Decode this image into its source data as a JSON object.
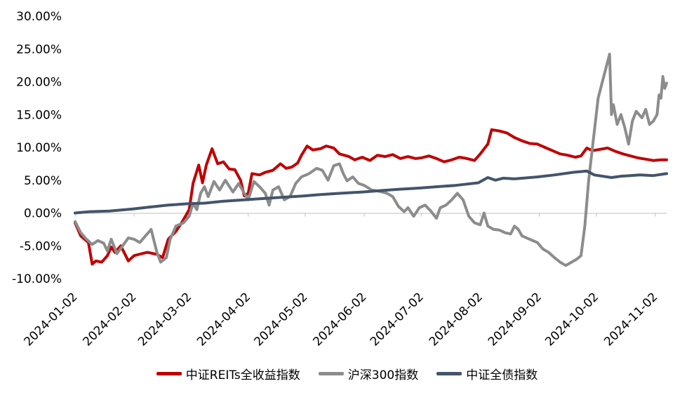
{
  "chart_data": {
    "type": "line",
    "title": "",
    "xlabel": "",
    "ylabel": "",
    "ylim": [
      -10,
      30
    ],
    "y_ticks": [
      "30.00%",
      "25.00%",
      "20.00%",
      "15.00%",
      "10.00%",
      "5.00%",
      "0.00%",
      "-5.00%",
      "-10.00%"
    ],
    "x_ticks": [
      "2024-01-02",
      "2024-02-02",
      "2024-03-02",
      "2024-04-02",
      "2024-05-02",
      "2024-06-02",
      "2024-07-02",
      "2024-08-02",
      "2024-09-02",
      "2024-10-02",
      "2024-11-02"
    ],
    "grid": false,
    "legend_position": "bottom",
    "series": [
      {
        "name": "中证REITs全收益指数",
        "color": "#c00000",
        "points": [
          [
            "2024-01-02",
            -1.5
          ],
          [
            "2024-01-05",
            -3.5
          ],
          [
            "2024-01-09",
            -4.5
          ],
          [
            "2024-01-11",
            -7.8
          ],
          [
            "2024-01-13",
            -7.3
          ],
          [
            "2024-01-16",
            -7.5
          ],
          [
            "2024-01-19",
            -6.5
          ],
          [
            "2024-01-21",
            -5.2
          ],
          [
            "2024-01-23",
            -6.0
          ],
          [
            "2024-01-26",
            -5.0
          ],
          [
            "2024-01-30",
            -7.3
          ],
          [
            "2024-02-02",
            -6.5
          ],
          [
            "2024-02-06",
            -6.2
          ],
          [
            "2024-02-09",
            -6.0
          ],
          [
            "2024-02-14",
            -6.3
          ],
          [
            "2024-02-17",
            -6.8
          ],
          [
            "2024-02-20",
            -4.0
          ],
          [
            "2024-02-24",
            -2.8
          ],
          [
            "2024-02-27",
            -1.5
          ],
          [
            "2024-02-29",
            -0.5
          ],
          [
            "2024-03-02",
            0.5
          ],
          [
            "2024-03-04",
            4.5
          ],
          [
            "2024-03-07",
            7.3
          ],
          [
            "2024-03-09",
            4.6
          ],
          [
            "2024-03-11",
            7.3
          ],
          [
            "2024-03-14",
            9.8
          ],
          [
            "2024-03-17",
            7.5
          ],
          [
            "2024-03-20",
            7.8
          ],
          [
            "2024-03-23",
            6.7
          ],
          [
            "2024-03-26",
            6.6
          ],
          [
            "2024-03-29",
            5.0
          ],
          [
            "2024-03-31",
            2.6
          ],
          [
            "2024-04-02",
            3.0
          ],
          [
            "2024-04-04",
            6.0
          ],
          [
            "2024-04-08",
            5.8
          ],
          [
            "2024-04-11",
            6.2
          ],
          [
            "2024-04-15",
            6.5
          ],
          [
            "2024-04-19",
            7.5
          ],
          [
            "2024-04-22",
            6.8
          ],
          [
            "2024-04-25",
            7.0
          ],
          [
            "2024-04-28",
            7.6
          ],
          [
            "2024-04-30",
            8.8
          ],
          [
            "2024-05-03",
            10.2
          ],
          [
            "2024-05-06",
            9.6
          ],
          [
            "2024-05-10",
            9.8
          ],
          [
            "2024-05-13",
            10.2
          ],
          [
            "2024-05-17",
            9.9
          ],
          [
            "2024-05-20",
            9.0
          ],
          [
            "2024-05-25",
            8.6
          ],
          [
            "2024-05-28",
            8.1
          ],
          [
            "2024-06-01",
            8.5
          ],
          [
            "2024-06-05",
            8.0
          ],
          [
            "2024-06-09",
            8.8
          ],
          [
            "2024-06-13",
            8.6
          ],
          [
            "2024-06-17",
            8.9
          ],
          [
            "2024-06-21",
            8.3
          ],
          [
            "2024-06-25",
            8.6
          ],
          [
            "2024-06-29",
            8.3
          ],
          [
            "2024-07-02",
            8.4
          ],
          [
            "2024-07-06",
            8.7
          ],
          [
            "2024-07-10",
            8.3
          ],
          [
            "2024-07-14",
            7.8
          ],
          [
            "2024-07-18",
            8.1
          ],
          [
            "2024-07-22",
            8.5
          ],
          [
            "2024-07-26",
            8.3
          ],
          [
            "2024-07-30",
            8.0
          ],
          [
            "2024-08-02",
            9.0
          ],
          [
            "2024-08-06",
            10.5
          ],
          [
            "2024-08-08",
            12.7
          ],
          [
            "2024-08-12",
            12.5
          ],
          [
            "2024-08-16",
            12.2
          ],
          [
            "2024-08-20",
            11.5
          ],
          [
            "2024-08-24",
            11.0
          ],
          [
            "2024-08-28",
            10.6
          ],
          [
            "2024-09-01",
            10.5
          ],
          [
            "2024-09-05",
            10.0
          ],
          [
            "2024-09-09",
            9.5
          ],
          [
            "2024-09-13",
            9.0
          ],
          [
            "2024-09-17",
            8.8
          ],
          [
            "2024-09-21",
            8.5
          ],
          [
            "2024-09-24",
            8.7
          ],
          [
            "2024-09-27",
            9.9
          ],
          [
            "2024-09-30",
            9.5
          ],
          [
            "2024-10-04",
            9.7
          ],
          [
            "2024-10-08",
            9.9
          ],
          [
            "2024-10-12",
            9.4
          ],
          [
            "2024-10-16",
            9.0
          ],
          [
            "2024-10-20",
            8.7
          ],
          [
            "2024-10-24",
            8.4
          ],
          [
            "2024-10-28",
            8.2
          ],
          [
            "2024-11-01",
            8.0
          ],
          [
            "2024-11-05",
            8.1
          ],
          [
            "2024-11-08",
            8.1
          ]
        ]
      },
      {
        "name": "沪深300指数",
        "color": "#8c8c8c",
        "points": [
          [
            "2024-01-02",
            -1.3
          ],
          [
            "2024-01-05",
            -3.0
          ],
          [
            "2024-01-08",
            -4.0
          ],
          [
            "2024-01-11",
            -4.8
          ],
          [
            "2024-01-14",
            -4.2
          ],
          [
            "2024-01-17",
            -4.6
          ],
          [
            "2024-01-19",
            -5.8
          ],
          [
            "2024-01-21",
            -4.0
          ],
          [
            "2024-01-24",
            -6.2
          ],
          [
            "2024-01-27",
            -5.0
          ],
          [
            "2024-01-30",
            -3.8
          ],
          [
            "2024-02-02",
            -4.0
          ],
          [
            "2024-02-05",
            -4.5
          ],
          [
            "2024-02-08",
            -3.5
          ],
          [
            "2024-02-11",
            -2.5
          ],
          [
            "2024-02-14",
            -6.0
          ],
          [
            "2024-02-16",
            -7.5
          ],
          [
            "2024-02-19",
            -6.8
          ],
          [
            "2024-02-21",
            -4.0
          ],
          [
            "2024-02-24",
            -2.0
          ],
          [
            "2024-02-28",
            -1.5
          ],
          [
            "2024-03-02",
            -0.5
          ],
          [
            "2024-03-04",
            1.5
          ],
          [
            "2024-03-06",
            0.5
          ],
          [
            "2024-03-08",
            3.0
          ],
          [
            "2024-03-10",
            4.0
          ],
          [
            "2024-03-12",
            2.5
          ],
          [
            "2024-03-15",
            4.8
          ],
          [
            "2024-03-18",
            3.5
          ],
          [
            "2024-03-21",
            5.0
          ],
          [
            "2024-03-25",
            3.2
          ],
          [
            "2024-03-28",
            4.5
          ],
          [
            "2024-03-31",
            3.0
          ],
          [
            "2024-04-02",
            2.0
          ],
          [
            "2024-04-05",
            4.8
          ],
          [
            "2024-04-08",
            4.0
          ],
          [
            "2024-04-11",
            3.0
          ],
          [
            "2024-04-13",
            1.2
          ],
          [
            "2024-04-15",
            3.5
          ],
          [
            "2024-04-18",
            4.0
          ],
          [
            "2024-04-21",
            2.0
          ],
          [
            "2024-04-24",
            2.5
          ],
          [
            "2024-04-27",
            4.5
          ],
          [
            "2024-04-30",
            5.5
          ],
          [
            "2024-05-04",
            6.0
          ],
          [
            "2024-05-08",
            6.8
          ],
          [
            "2024-05-11",
            6.5
          ],
          [
            "2024-05-14",
            5.0
          ],
          [
            "2024-05-17",
            7.2
          ],
          [
            "2024-05-20",
            7.5
          ],
          [
            "2024-05-22",
            6.0
          ],
          [
            "2024-05-24",
            4.9
          ],
          [
            "2024-05-27",
            5.5
          ],
          [
            "2024-05-30",
            4.5
          ],
          [
            "2024-06-02",
            4.2
          ],
          [
            "2024-06-06",
            3.5
          ],
          [
            "2024-06-10",
            3.3
          ],
          [
            "2024-06-14",
            3.0
          ],
          [
            "2024-06-17",
            2.5
          ],
          [
            "2024-06-20",
            1.0
          ],
          [
            "2024-06-23",
            0.2
          ],
          [
            "2024-06-25",
            0.8
          ],
          [
            "2024-06-28",
            -0.5
          ],
          [
            "2024-07-01",
            0.8
          ],
          [
            "2024-07-04",
            1.2
          ],
          [
            "2024-07-07",
            0.3
          ],
          [
            "2024-07-10",
            -0.8
          ],
          [
            "2024-07-12",
            0.8
          ],
          [
            "2024-07-15",
            1.2
          ],
          [
            "2024-07-18",
            2.0
          ],
          [
            "2024-07-21",
            3.0
          ],
          [
            "2024-07-24",
            2.0
          ],
          [
            "2024-07-27",
            -0.5
          ],
          [
            "2024-07-30",
            -1.5
          ],
          [
            "2024-08-02",
            -1.8
          ],
          [
            "2024-08-04",
            0.0
          ],
          [
            "2024-08-06",
            -2.0
          ],
          [
            "2024-08-09",
            -2.5
          ],
          [
            "2024-08-12",
            -2.6
          ],
          [
            "2024-08-15",
            -3.0
          ],
          [
            "2024-08-18",
            -3.2
          ],
          [
            "2024-08-20",
            -2.0
          ],
          [
            "2024-08-22",
            -2.5
          ],
          [
            "2024-08-24",
            -3.5
          ],
          [
            "2024-08-28",
            -4.0
          ],
          [
            "2024-09-01",
            -4.5
          ],
          [
            "2024-09-04",
            -5.5
          ],
          [
            "2024-09-07",
            -6.0
          ],
          [
            "2024-09-10",
            -6.8
          ],
          [
            "2024-09-13",
            -7.5
          ],
          [
            "2024-09-16",
            -8.0
          ],
          [
            "2024-09-19",
            -7.5
          ],
          [
            "2024-09-22",
            -7.0
          ],
          [
            "2024-09-24",
            -6.5
          ],
          [
            "2024-09-26",
            -2.0
          ],
          [
            "2024-09-28",
            5.0
          ],
          [
            "2024-09-30",
            10.0
          ],
          [
            "2024-10-02",
            15.0
          ],
          [
            "2024-10-03",
            17.5
          ],
          [
            "2024-10-07",
            22.0
          ],
          [
            "2024-10-09",
            24.2
          ],
          [
            "2024-10-10",
            15.0
          ],
          [
            "2024-10-11",
            16.5
          ],
          [
            "2024-10-13",
            13.5
          ],
          [
            "2024-10-15",
            15.0
          ],
          [
            "2024-10-17",
            13.0
          ],
          [
            "2024-10-19",
            10.5
          ],
          [
            "2024-10-21",
            14.0
          ],
          [
            "2024-10-23",
            15.5
          ],
          [
            "2024-10-26",
            14.5
          ],
          [
            "2024-10-28",
            15.8
          ],
          [
            "2024-10-30",
            13.5
          ],
          [
            "2024-11-01",
            14.0
          ],
          [
            "2024-11-03",
            15.0
          ],
          [
            "2024-11-04",
            18.0
          ],
          [
            "2024-11-05",
            17.5
          ],
          [
            "2024-11-06",
            20.8
          ],
          [
            "2024-11-07",
            19.0
          ],
          [
            "2024-11-08",
            19.8
          ]
        ]
      },
      {
        "name": "中证全债指数",
        "color": "#44546a",
        "points": [
          [
            "2024-01-02",
            0.0
          ],
          [
            "2024-01-10",
            0.2
          ],
          [
            "2024-01-20",
            0.3
          ],
          [
            "2024-02-01",
            0.6
          ],
          [
            "2024-02-10",
            0.9
          ],
          [
            "2024-02-20",
            1.2
          ],
          [
            "2024-03-01",
            1.4
          ],
          [
            "2024-03-10",
            1.5
          ],
          [
            "2024-03-20",
            1.8
          ],
          [
            "2024-03-31",
            2.0
          ],
          [
            "2024-04-10",
            2.2
          ],
          [
            "2024-04-20",
            2.4
          ],
          [
            "2024-05-01",
            2.6
          ],
          [
            "2024-05-10",
            2.8
          ],
          [
            "2024-05-20",
            3.0
          ],
          [
            "2024-06-01",
            3.2
          ],
          [
            "2024-06-10",
            3.4
          ],
          [
            "2024-06-20",
            3.6
          ],
          [
            "2024-07-01",
            3.8
          ],
          [
            "2024-07-10",
            4.0
          ],
          [
            "2024-07-20",
            4.2
          ],
          [
            "2024-08-01",
            4.6
          ],
          [
            "2024-08-06",
            5.4
          ],
          [
            "2024-08-10",
            5.0
          ],
          [
            "2024-08-14",
            5.3
          ],
          [
            "2024-08-20",
            5.2
          ],
          [
            "2024-09-01",
            5.5
          ],
          [
            "2024-09-10",
            5.8
          ],
          [
            "2024-09-20",
            6.2
          ],
          [
            "2024-09-27",
            6.4
          ],
          [
            "2024-10-01",
            5.8
          ],
          [
            "2024-10-10",
            5.4
          ],
          [
            "2024-10-15",
            5.6
          ],
          [
            "2024-10-25",
            5.8
          ],
          [
            "2024-11-01",
            5.7
          ],
          [
            "2024-11-08",
            6.0
          ]
        ]
      }
    ]
  }
}
